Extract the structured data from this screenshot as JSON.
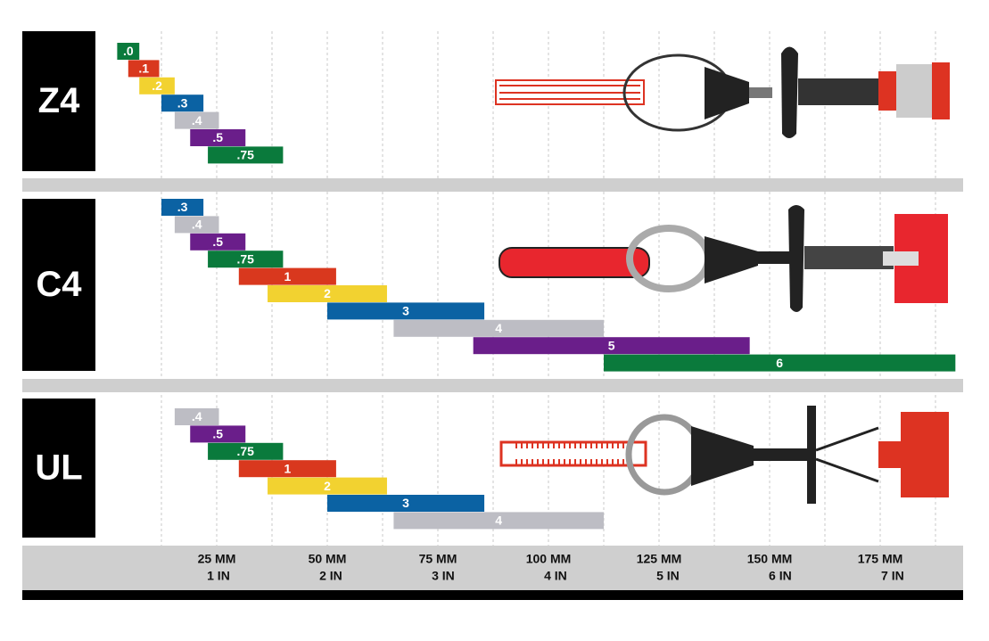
{
  "chart_data": [
    {
      "type": "range-bar",
      "title": "Z4",
      "bars": [
        {
          "label": ".0",
          "color": "#0a7a3c",
          "low": 2.5,
          "high": 7.5
        },
        {
          "label": ".1",
          "color": "#d9381e",
          "low": 5,
          "high": 12
        },
        {
          "label": ".2",
          "color": "#f2d230",
          "low": 7.5,
          "high": 15.5
        },
        {
          "label": ".3",
          "color": "#0b62a3",
          "low": 12.5,
          "high": 22
        },
        {
          "label": ".4",
          "color": "#bdbdc4",
          "low": 15.5,
          "high": 25.5
        },
        {
          "label": ".5",
          "color": "#6a1e8a",
          "low": 19,
          "high": 31.5
        },
        {
          "label": ".75",
          "color": "#0a7a3c",
          "low": 23,
          "high": 40
        }
      ]
    },
    {
      "type": "range-bar",
      "title": "C4",
      "bars": [
        {
          "label": ".3",
          "color": "#0b62a3",
          "low": 12.5,
          "high": 22
        },
        {
          "label": ".4",
          "color": "#bdbdc4",
          "low": 15.5,
          "high": 25.5
        },
        {
          "label": ".5",
          "color": "#6a1e8a",
          "low": 19,
          "high": 31.5
        },
        {
          "label": ".75",
          "color": "#0a7a3c",
          "low": 23,
          "high": 40
        },
        {
          "label": "1",
          "color": "#d9381e",
          "low": 30,
          "high": 52
        },
        {
          "label": "2",
          "color": "#f2d230",
          "low": 36.5,
          "high": 63.5
        },
        {
          "label": "3",
          "color": "#0b62a3",
          "low": 50,
          "high": 85.5
        },
        {
          "label": "4",
          "color": "#bdbdc4",
          "low": 65,
          "high": 112.5
        },
        {
          "label": "5",
          "color": "#6a1e8a",
          "low": 83,
          "high": 145.5
        },
        {
          "label": "6",
          "color": "#0a7a3c",
          "low": 112.5,
          "high": 192
        }
      ]
    },
    {
      "type": "range-bar",
      "title": "UL",
      "bars": [
        {
          "label": ".4",
          "color": "#bdbdc4",
          "low": 15.5,
          "high": 25.5
        },
        {
          "label": ".5",
          "color": "#6a1e8a",
          "low": 19,
          "high": 31.5
        },
        {
          "label": ".75",
          "color": "#0a7a3c",
          "low": 23,
          "high": 40
        },
        {
          "label": "1",
          "color": "#d9381e",
          "low": 30,
          "high": 52
        },
        {
          "label": "2",
          "color": "#f2d230",
          "low": 36.5,
          "high": 63.5
        },
        {
          "label": "3",
          "color": "#0b62a3",
          "low": 50,
          "high": 85.5
        },
        {
          "label": "4",
          "color": "#bdbdc4",
          "low": 65,
          "high": 112.5
        }
      ]
    }
  ],
  "axis": {
    "xlim": [
      0,
      194
    ],
    "xticks": [
      {
        "value": 25,
        "label": "25 MM"
      },
      {
        "value": 50,
        "label": "50 MM"
      },
      {
        "value": 75,
        "label": "75 MM"
      },
      {
        "value": 100,
        "label": "100 MM"
      },
      {
        "value": 125,
        "label": "125 MM"
      },
      {
        "value": 150,
        "label": "150 MM"
      },
      {
        "value": 175,
        "label": "175 MM"
      }
    ],
    "x2ticks": [
      {
        "value": 25.4,
        "label": "1 IN"
      },
      {
        "value": 50.8,
        "label": "2 IN"
      },
      {
        "value": 76.2,
        "label": "3 IN"
      },
      {
        "value": 101.6,
        "label": "4 IN"
      },
      {
        "value": 127,
        "label": "5 IN"
      },
      {
        "value": 152.4,
        "label": "6 IN"
      },
      {
        "value": 177.8,
        "label": "7 IN"
      }
    ],
    "xgrid": [
      12.5,
      25,
      37.5,
      50,
      62.5,
      75,
      87.5,
      100,
      112.5,
      125,
      137.5,
      150,
      162.5,
      175,
      187.5
    ]
  }
}
